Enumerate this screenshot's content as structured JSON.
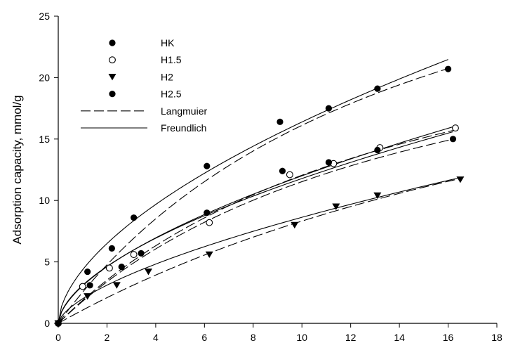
{
  "chart_data": {
    "type": "scatter",
    "xlabel": "",
    "ylabel": "Adsorption capacity, mmol/g",
    "xlim": [
      0,
      18
    ],
    "ylim": [
      0,
      25
    ],
    "xticks": [
      0,
      2,
      4,
      6,
      8,
      10,
      12,
      14,
      16,
      18
    ],
    "yticks": [
      0,
      5,
      10,
      15,
      20,
      25
    ],
    "grid": false,
    "legend_position": "top-left",
    "series": [
      {
        "name": "HK",
        "marker": "filled-circle",
        "x": [
          0,
          1.2,
          2.2,
          3.1,
          6.1,
          9.1,
          11.1,
          13.1,
          16.0
        ],
        "y": [
          0,
          4.2,
          6.1,
          8.6,
          12.8,
          16.4,
          17.5,
          19.1,
          20.7
        ]
      },
      {
        "name": "H1.5",
        "marker": "open-circle",
        "x": [
          0,
          1.0,
          2.1,
          3.1,
          6.2,
          9.5,
          11.3,
          13.2,
          16.3
        ],
        "y": [
          0,
          3.0,
          4.5,
          5.6,
          8.2,
          12.1,
          13.0,
          14.3,
          15.9
        ]
      },
      {
        "name": "H2",
        "marker": "filled-triangle-down",
        "x": [
          0,
          1.2,
          2.4,
          3.7,
          6.2,
          9.7,
          11.4,
          13.1,
          16.5
        ],
        "y": [
          0,
          2.2,
          3.1,
          4.2,
          5.6,
          8.0,
          9.5,
          10.4,
          11.7
        ]
      },
      {
        "name": "H2.5",
        "marker": "filled-circle",
        "x": [
          0,
          1.3,
          2.6,
          3.4,
          6.1,
          9.2,
          11.1,
          13.1,
          16.2
        ],
        "y": [
          0,
          3.1,
          4.6,
          5.7,
          9.0,
          12.4,
          13.1,
          14.1,
          15.0
        ]
      }
    ],
    "fits": [
      {
        "name": "Langmuier",
        "style": "dashed",
        "applies_to": "HK",
        "model": "langmuir",
        "qm": 39.8,
        "b": 0.068,
        "x_end": 16.0
      },
      {
        "name": "Langmuier",
        "style": "dashed",
        "applies_to": "H1.5",
        "model": "langmuir",
        "qm": 30.6,
        "b": 0.065,
        "x_end": 16.3
      },
      {
        "name": "Langmuier",
        "style": "dashed",
        "applies_to": "H2",
        "model": "langmuir",
        "qm": 32.8,
        "b": 0.034,
        "x_end": 16.5
      },
      {
        "name": "Langmuier",
        "style": "dashed",
        "applies_to": "H2.5",
        "model": "langmuir",
        "qm": 29.0,
        "b": 0.066,
        "x_end": 16.2
      },
      {
        "name": "Freundlich",
        "style": "solid",
        "applies_to": "HK",
        "model": "freundlich",
        "k": 4.36,
        "n_inv": 0.575,
        "x_end": 16.0
      },
      {
        "name": "Freundlich",
        "style": "solid",
        "applies_to": "H1.5",
        "model": "freundlich",
        "k": 3.05,
        "n_inv": 0.595,
        "x_end": 16.3
      },
      {
        "name": "Freundlich",
        "style": "solid",
        "applies_to": "H2",
        "model": "freundlich",
        "k": 2.0,
        "n_inv": 0.635,
        "x_end": 16.5
      },
      {
        "name": "Freundlich",
        "style": "solid",
        "applies_to": "H2.5",
        "model": "freundlich",
        "k": 3.1,
        "n_inv": 0.58,
        "x_end": 16.2
      }
    ],
    "legend": [
      {
        "label": "HK",
        "symbol": "filled-circle"
      },
      {
        "label": "H1.5",
        "symbol": "open-circle"
      },
      {
        "label": "H2",
        "symbol": "filled-triangle-down"
      },
      {
        "label": "H2.5",
        "symbol": "filled-circle"
      },
      {
        "label": "Langmuier",
        "symbol": "dashed-line"
      },
      {
        "label": "Freundlich",
        "symbol": "solid-line"
      }
    ]
  }
}
